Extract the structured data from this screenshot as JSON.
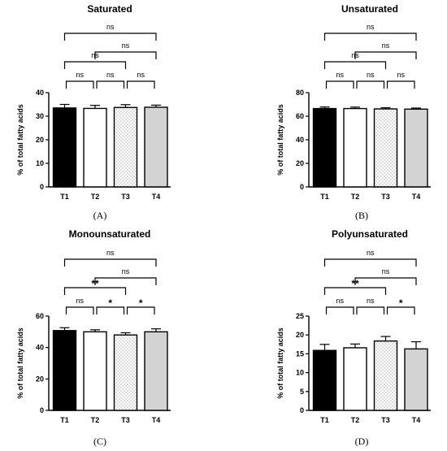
{
  "chart_data": [
    {
      "type": "bar",
      "title": "Saturated",
      "panel_label": "(A)",
      "ylabel": "% of total fatty acids",
      "categories": [
        "T1",
        "T2",
        "T3",
        "T4"
      ],
      "values": [
        33.5,
        33.3,
        33.7,
        33.8
      ],
      "errors": [
        1.5,
        1.3,
        1.2,
        0.9
      ],
      "ylim": [
        0,
        40
      ],
      "yticks": [
        0,
        10,
        20,
        30,
        40
      ],
      "fills": [
        "#000000",
        "#ffffff",
        "dotted",
        "#d3d3d3"
      ],
      "comparisons": [
        {
          "from": 0,
          "to": 3,
          "label": "ns",
          "level": 4
        },
        {
          "from": 1,
          "to": 3,
          "label": "ns",
          "level": 3
        },
        {
          "from": 0,
          "to": 2,
          "label": "ns",
          "level": 2
        },
        {
          "from": 0,
          "to": 1,
          "label": "ns",
          "level": 1
        },
        {
          "from": 1,
          "to": 2,
          "label": "ns",
          "level": 1
        },
        {
          "from": 2,
          "to": 3,
          "label": "ns",
          "level": 1
        }
      ]
    },
    {
      "type": "bar",
      "title": "Unsaturated",
      "panel_label": "(B)",
      "ylabel": "% of total fatty acids",
      "categories": [
        "T1",
        "T2",
        "T3",
        "T4"
      ],
      "values": [
        66.5,
        66.5,
        66.2,
        66.0
      ],
      "errors": [
        1.3,
        1.2,
        1.0,
        0.9
      ],
      "ylim": [
        0,
        80
      ],
      "yticks": [
        0,
        20,
        40,
        60,
        80
      ],
      "fills": [
        "#000000",
        "#ffffff",
        "dotted",
        "#d3d3d3"
      ],
      "comparisons": [
        {
          "from": 0,
          "to": 3,
          "label": "ns",
          "level": 4
        },
        {
          "from": 1,
          "to": 3,
          "label": "ns",
          "level": 3
        },
        {
          "from": 0,
          "to": 2,
          "label": "ns",
          "level": 2
        },
        {
          "from": 0,
          "to": 1,
          "label": "ns",
          "level": 1
        },
        {
          "from": 1,
          "to": 2,
          "label": "ns",
          "level": 1
        },
        {
          "from": 2,
          "to": 3,
          "label": "ns",
          "level": 1
        }
      ]
    },
    {
      "type": "bar",
      "title": "Monounsaturated",
      "panel_label": "(C)",
      "ylabel": "% of total fatty acids",
      "categories": [
        "T1",
        "T2",
        "T3",
        "T4"
      ],
      "values": [
        50.8,
        50.0,
        48.0,
        50.0
      ],
      "errors": [
        1.8,
        1.3,
        1.4,
        1.9
      ],
      "ylim": [
        0,
        60
      ],
      "yticks": [
        0,
        20,
        40,
        60
      ],
      "fills": [
        "#000000",
        "#ffffff",
        "dotted",
        "#d3d3d3"
      ],
      "comparisons": [
        {
          "from": 0,
          "to": 3,
          "label": "ns",
          "level": 4
        },
        {
          "from": 1,
          "to": 3,
          "label": "ns",
          "level": 3
        },
        {
          "from": 0,
          "to": 2,
          "label": "**",
          "level": 2
        },
        {
          "from": 0,
          "to": 1,
          "label": "ns",
          "level": 1
        },
        {
          "from": 1,
          "to": 2,
          "label": "*",
          "level": 1
        },
        {
          "from": 2,
          "to": 3,
          "label": "*",
          "level": 1
        }
      ]
    },
    {
      "type": "bar",
      "title": "Polyunsaturated",
      "panel_label": "(D)",
      "ylabel": "% of total fatty acids",
      "categories": [
        "T1",
        "T2",
        "T3",
        "T4"
      ],
      "values": [
        15.9,
        16.6,
        18.4,
        16.3
      ],
      "errors": [
        1.6,
        1.0,
        1.2,
        1.9
      ],
      "ylim": [
        0,
        25
      ],
      "yticks": [
        0,
        5,
        10,
        15,
        20,
        25
      ],
      "fills": [
        "#000000",
        "#ffffff",
        "dotted",
        "#d3d3d3"
      ],
      "comparisons": [
        {
          "from": 0,
          "to": 3,
          "label": "ns",
          "level": 4
        },
        {
          "from": 1,
          "to": 3,
          "label": "ns",
          "level": 3
        },
        {
          "from": 0,
          "to": 2,
          "label": "**",
          "level": 2
        },
        {
          "from": 0,
          "to": 1,
          "label": "ns",
          "level": 1
        },
        {
          "from": 1,
          "to": 2,
          "label": "ns",
          "level": 1
        },
        {
          "from": 2,
          "to": 3,
          "label": "*",
          "level": 1
        }
      ]
    }
  ]
}
